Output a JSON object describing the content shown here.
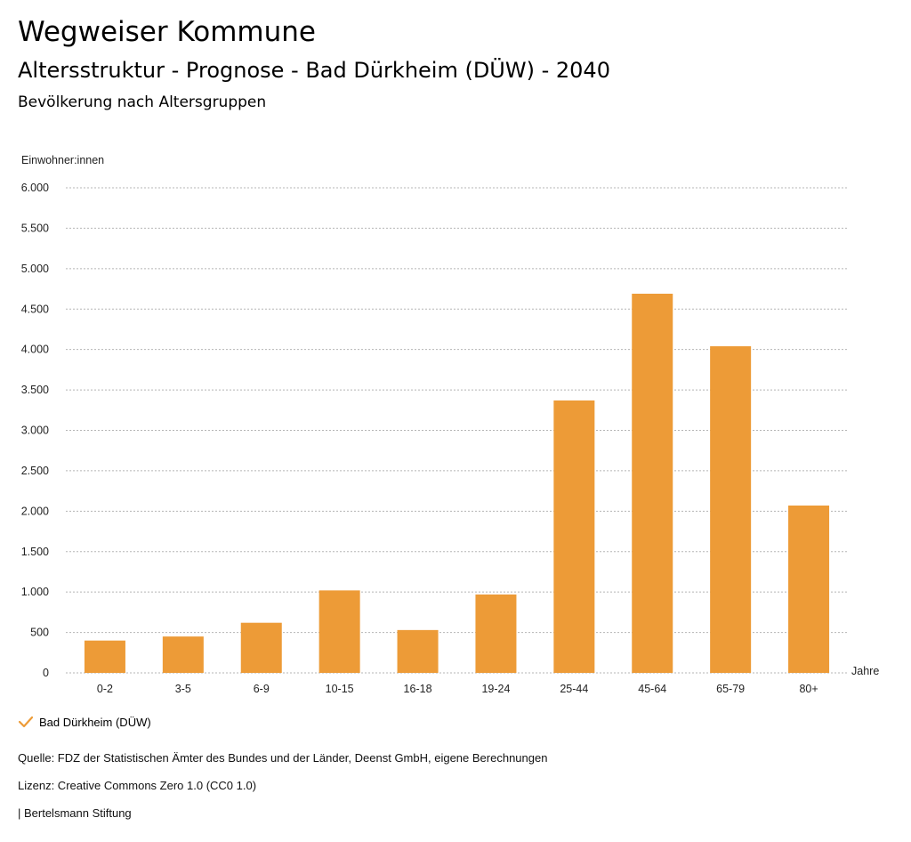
{
  "header": {
    "title": "Wegweiser Kommune",
    "subtitle": "Altersstruktur - Prognose - Bad Dürkheim (DÜW) - 2040",
    "section": "Bevölkerung nach Altersgruppen"
  },
  "chart_data": {
    "type": "bar",
    "ylabel": "Einwohner:innen",
    "xlabel": "Jahre",
    "ylim": [
      0,
      6000
    ],
    "yticks": [
      0,
      500,
      1000,
      1500,
      2000,
      2500,
      3000,
      3500,
      4000,
      4500,
      5000,
      5500,
      6000
    ],
    "ytick_labels": [
      "0",
      "500",
      "1.000",
      "1.500",
      "2.000",
      "2.500",
      "3.000",
      "3.500",
      "4.000",
      "4.500",
      "5.000",
      "5.500",
      "6.000"
    ],
    "categories": [
      "0-2",
      "3-5",
      "6-9",
      "10-15",
      "16-18",
      "19-24",
      "25-44",
      "45-64",
      "65-79",
      "80+"
    ],
    "series": [
      {
        "name": "Bad Dürkheim (DÜW)",
        "values": [
          400,
          450,
          620,
          1020,
          530,
          970,
          3370,
          4690,
          4040,
          2070
        ]
      }
    ],
    "grid": true,
    "legend_position": "bottom-left",
    "colors": {
      "bar": "#ED9B37",
      "grid": "#b5b5b5"
    }
  },
  "legend": {
    "label": "Bad Dürkheim (DÜW)"
  },
  "footer": {
    "source": "Quelle: FDZ der Statistischen Ämter des Bundes und der Länder, Deenst GmbH, eigene Berechnungen",
    "license": "Lizenz: Creative Commons Zero 1.0 (CC0 1.0)",
    "publisher": "| Bertelsmann Stiftung"
  }
}
